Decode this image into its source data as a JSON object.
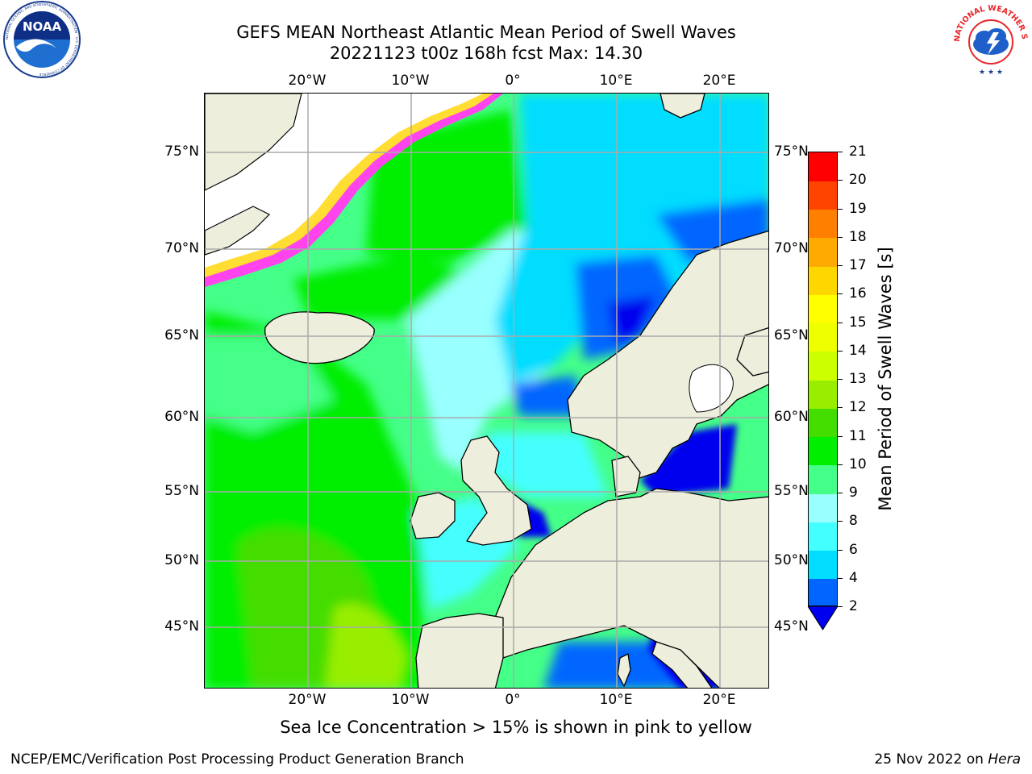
{
  "header": {
    "title_line1": "GEFS MEAN Northeast Atlantic Mean Period of Swell Waves",
    "title_line2": "20221123 t00z 168h fcst   Max: 14.30"
  },
  "logos": {
    "noaa_text": "NOAA",
    "noaa_ring_text": "NATIONAL OCEANIC AND ATMOSPHERIC ADMINISTRATION · U.S. DEPARTMENT OF COMMERCE",
    "nws_ring_text": "NATIONAL WEATHER SERVICE"
  },
  "map": {
    "lon_labels": [
      "20°W",
      "10°W",
      "0°",
      "10°E",
      "20°E"
    ],
    "lat_labels": [
      "75°N",
      "70°N",
      "65°N",
      "60°N",
      "55°N",
      "50°N",
      "45°N"
    ],
    "colors": {
      "land": "#eeeedd",
      "grid": "#aaaaaa",
      "ice_pink": "#ff44ee",
      "ice_yellow": "#ffdd33"
    }
  },
  "colorbar": {
    "title": "Mean Period of Swell Waves [s]",
    "tick_labels": [
      "21",
      "20",
      "19",
      "18",
      "17",
      "16",
      "15",
      "14",
      "13",
      "12",
      "11",
      "10",
      "9",
      "8",
      "6",
      "4",
      "2"
    ],
    "bounds": [
      2,
      4,
      6,
      8,
      9,
      10,
      11,
      12,
      13,
      14,
      15,
      16,
      17,
      18,
      19,
      20,
      21
    ],
    "colors": [
      "#0066ff",
      "#00ddff",
      "#44ffff",
      "#99ffff",
      "#44ff88",
      "#00ee00",
      "#44dd00",
      "#99ee00",
      "#ccff00",
      "#eeff00",
      "#ffff00",
      "#ffd700",
      "#ffaa00",
      "#ff8000",
      "#ff4400",
      "#ff0000"
    ],
    "under_color": "#0000ee"
  },
  "caption": "Sea Ice Concentration > 15% is shown in pink to yellow",
  "footer": {
    "left": "NCEP/EMC/Verification Post Processing Product Generation Branch",
    "right_prefix": "25 Nov 2022 on ",
    "right_host": "Hera"
  }
}
